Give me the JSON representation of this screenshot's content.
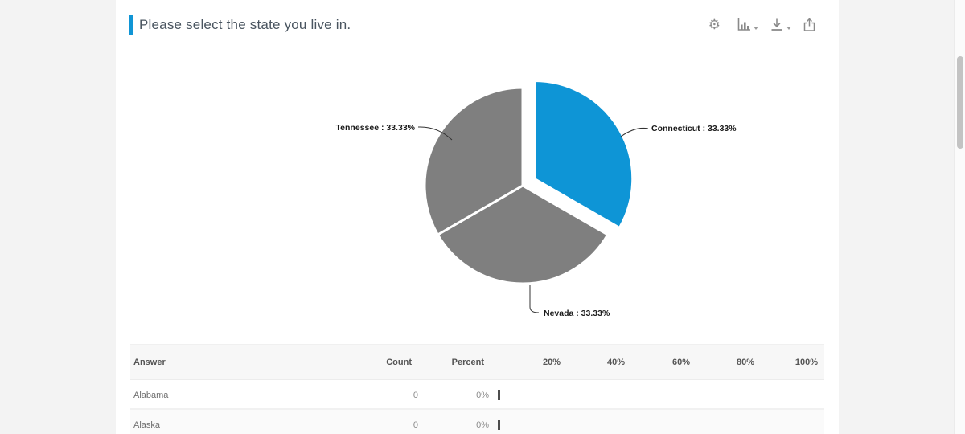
{
  "header": {
    "title": "Please select the state you live in.",
    "toolbar": [
      {
        "name": "settings",
        "icon": "gear-icon",
        "glyph": "⚙"
      },
      {
        "name": "chart-type",
        "icon": "bar-chart-icon",
        "has_caret": true
      },
      {
        "name": "download",
        "icon": "download-icon",
        "has_caret": true
      },
      {
        "name": "export",
        "icon": "share-icon",
        "has_caret": false
      }
    ]
  },
  "chart_data": {
    "type": "pie",
    "title": "Please select the state you live in.",
    "series": [
      {
        "name": "Connecticut",
        "value": 33.33,
        "color": "#0e95d6",
        "exploded": true
      },
      {
        "name": "Nevada",
        "value": 33.33,
        "color": "#7f7f7f",
        "exploded": false
      },
      {
        "name": "Tennessee",
        "value": 33.33,
        "color": "#7f7f7f",
        "exploded": false
      }
    ],
    "start_angle": 0,
    "direction": "clockwise",
    "label_format": "{name} : {value}%",
    "legend": "none",
    "slice_border_color": "#ffffff"
  },
  "table": {
    "columns": [
      "Answer",
      "Count",
      "Percent"
    ],
    "scale_labels": [
      "20%",
      "40%",
      "60%",
      "80%",
      "100%"
    ],
    "rows": [
      {
        "answer": "Alabama",
        "count": "0",
        "percent": "0%",
        "bar_percent": 0
      },
      {
        "answer": "Alaska",
        "count": "0",
        "percent": "0%",
        "bar_percent": 0
      }
    ]
  },
  "colors": {
    "accent_blue": "#1095d5",
    "pie_blue": "#0e95d6",
    "pie_gray": "#7f7f7f",
    "page_background": "#f3f3f3",
    "card_background": "#ffffff",
    "table_header_background": "#f7f7f7"
  }
}
